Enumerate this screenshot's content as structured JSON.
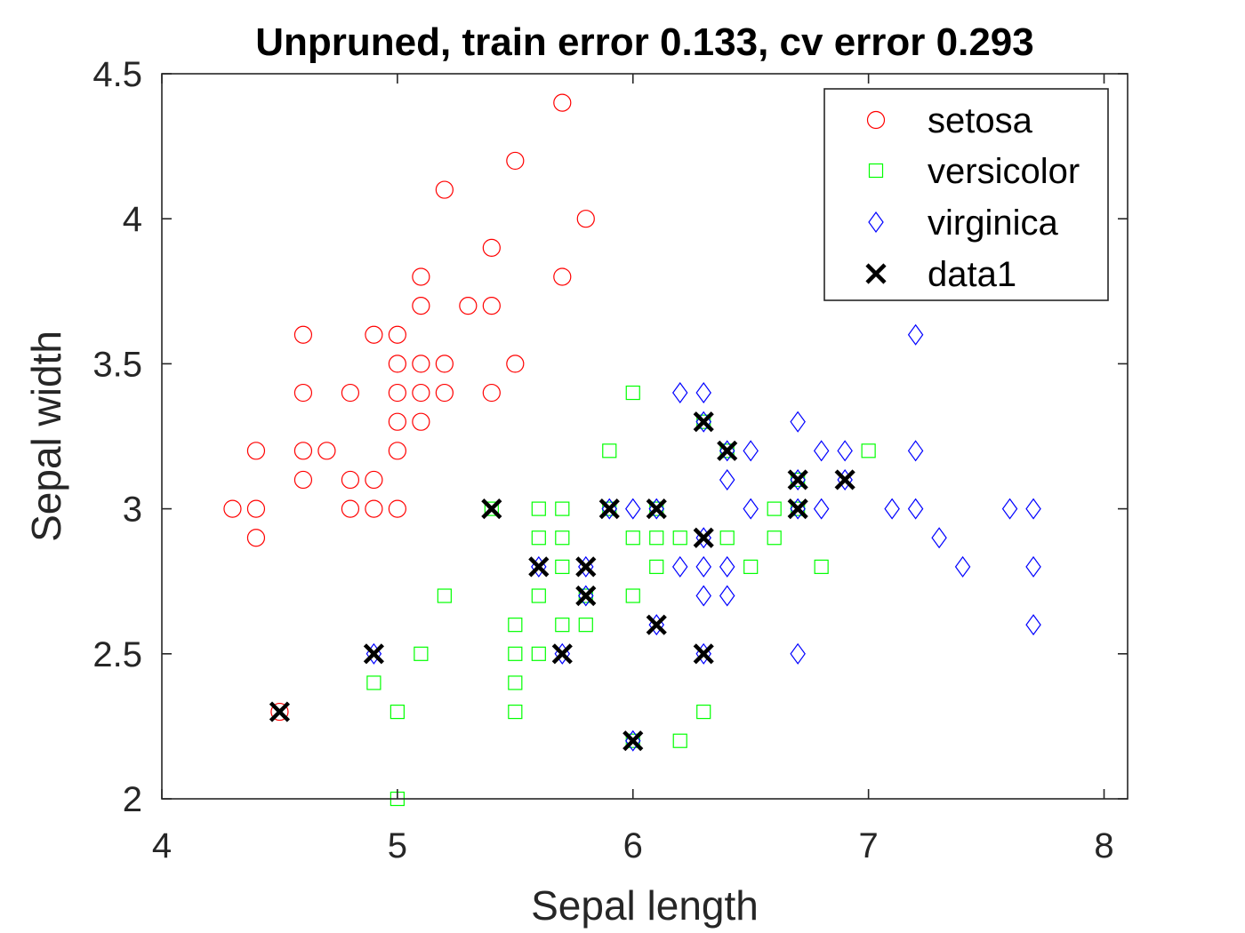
{
  "chart_data": {
    "type": "scatter",
    "title": "Unpruned, train error 0.133, cv error 0.293",
    "xlabel": "Sepal length",
    "ylabel": "Sepal width",
    "xlim": [
      4,
      8.1
    ],
    "ylim": [
      2,
      4.5
    ],
    "xticks": [
      "4",
      "5",
      "6",
      "7",
      "8"
    ],
    "xtick_values": [
      4,
      5,
      6,
      7,
      8
    ],
    "yticks": [
      "2",
      "2.5",
      "3",
      "3.5",
      "4",
      "4.5"
    ],
    "ytick_values": [
      2,
      2.5,
      3,
      3.5,
      4,
      4.5
    ],
    "grid": false,
    "legend_position": "top-right",
    "series": [
      {
        "name": "setosa",
        "marker": "circle",
        "color": "#ff0000",
        "points": [
          [
            5.7,
            4.4
          ],
          [
            5.5,
            4.2
          ],
          [
            5.2,
            4.1
          ],
          [
            5.8,
            4.0
          ],
          [
            5.4,
            3.9
          ],
          [
            5.1,
            3.8
          ],
          [
            5.7,
            3.8
          ],
          [
            5.1,
            3.7
          ],
          [
            5.3,
            3.7
          ],
          [
            5.4,
            3.7
          ],
          [
            4.6,
            3.6
          ],
          [
            4.9,
            3.6
          ],
          [
            5.0,
            3.6
          ],
          [
            5.0,
            3.5
          ],
          [
            5.1,
            3.5
          ],
          [
            5.2,
            3.5
          ],
          [
            5.5,
            3.5
          ],
          [
            4.6,
            3.4
          ],
          [
            4.8,
            3.4
          ],
          [
            5.0,
            3.4
          ],
          [
            5.1,
            3.4
          ],
          [
            5.2,
            3.4
          ],
          [
            5.4,
            3.4
          ],
          [
            5.0,
            3.3
          ],
          [
            5.1,
            3.3
          ],
          [
            4.4,
            3.2
          ],
          [
            4.6,
            3.2
          ],
          [
            4.7,
            3.2
          ],
          [
            5.0,
            3.2
          ],
          [
            4.6,
            3.1
          ],
          [
            4.8,
            3.1
          ],
          [
            4.9,
            3.1
          ],
          [
            4.3,
            3.0
          ],
          [
            4.4,
            3.0
          ],
          [
            4.8,
            3.0
          ],
          [
            4.9,
            3.0
          ],
          [
            5.0,
            3.0
          ],
          [
            4.4,
            2.9
          ],
          [
            4.5,
            2.3
          ]
        ]
      },
      {
        "name": "versicolor",
        "marker": "square",
        "color": "#00ff00",
        "points": [
          [
            6.0,
            3.4
          ],
          [
            5.9,
            3.2
          ],
          [
            7.0,
            3.2
          ],
          [
            6.4,
            3.2
          ],
          [
            6.3,
            3.3
          ],
          [
            6.7,
            3.1
          ],
          [
            5.4,
            3.0
          ],
          [
            5.6,
            3.0
          ],
          [
            5.7,
            3.0
          ],
          [
            5.9,
            3.0
          ],
          [
            6.1,
            3.0
          ],
          [
            6.6,
            3.0
          ],
          [
            6.7,
            3.0
          ],
          [
            5.6,
            2.9
          ],
          [
            5.7,
            2.9
          ],
          [
            6.0,
            2.9
          ],
          [
            6.1,
            2.9
          ],
          [
            6.2,
            2.9
          ],
          [
            6.4,
            2.9
          ],
          [
            6.6,
            2.9
          ],
          [
            5.7,
            2.8
          ],
          [
            6.1,
            2.8
          ],
          [
            6.5,
            2.8
          ],
          [
            6.8,
            2.8
          ],
          [
            5.2,
            2.7
          ],
          [
            5.6,
            2.7
          ],
          [
            5.8,
            2.7
          ],
          [
            6.0,
            2.7
          ],
          [
            5.5,
            2.6
          ],
          [
            5.7,
            2.6
          ],
          [
            5.8,
            2.6
          ],
          [
            5.1,
            2.5
          ],
          [
            5.5,
            2.5
          ],
          [
            5.6,
            2.5
          ],
          [
            4.9,
            2.4
          ],
          [
            5.5,
            2.4
          ],
          [
            5.0,
            2.3
          ],
          [
            5.5,
            2.3
          ],
          [
            6.3,
            2.3
          ],
          [
            6.2,
            2.2
          ],
          [
            6.0,
            2.2
          ],
          [
            5.0,
            2.0
          ]
        ]
      },
      {
        "name": "virginica",
        "marker": "diamond",
        "color": "#0000ff",
        "points": [
          [
            7.2,
            3.6
          ],
          [
            6.2,
            3.4
          ],
          [
            6.3,
            3.4
          ],
          [
            6.7,
            3.3
          ],
          [
            6.3,
            3.3
          ],
          [
            6.4,
            3.2
          ],
          [
            6.5,
            3.2
          ],
          [
            6.8,
            3.2
          ],
          [
            6.9,
            3.2
          ],
          [
            7.2,
            3.2
          ],
          [
            6.4,
            3.1
          ],
          [
            6.7,
            3.1
          ],
          [
            6.9,
            3.1
          ],
          [
            5.9,
            3.0
          ],
          [
            6.0,
            3.0
          ],
          [
            6.1,
            3.0
          ],
          [
            6.5,
            3.0
          ],
          [
            6.8,
            3.0
          ],
          [
            7.1,
            3.0
          ],
          [
            7.2,
            3.0
          ],
          [
            7.6,
            3.0
          ],
          [
            7.7,
            3.0
          ],
          [
            6.7,
            3.0
          ],
          [
            6.3,
            2.9
          ],
          [
            7.3,
            2.9
          ],
          [
            5.6,
            2.8
          ],
          [
            6.2,
            2.8
          ],
          [
            6.3,
            2.8
          ],
          [
            6.4,
            2.8
          ],
          [
            7.4,
            2.8
          ],
          [
            7.7,
            2.8
          ],
          [
            5.8,
            2.8
          ],
          [
            5.8,
            2.7
          ],
          [
            6.3,
            2.7
          ],
          [
            6.4,
            2.7
          ],
          [
            6.1,
            2.6
          ],
          [
            7.7,
            2.6
          ],
          [
            4.9,
            2.5
          ],
          [
            5.7,
            2.5
          ],
          [
            6.3,
            2.5
          ],
          [
            6.7,
            2.5
          ],
          [
            6.0,
            2.2
          ]
        ]
      },
      {
        "name": "data1",
        "marker": "x",
        "color": "#000000",
        "points": [
          [
            6.3,
            3.3
          ],
          [
            6.4,
            3.2
          ],
          [
            6.7,
            3.1
          ],
          [
            6.9,
            3.1
          ],
          [
            5.4,
            3.0
          ],
          [
            5.9,
            3.0
          ],
          [
            6.1,
            3.0
          ],
          [
            6.7,
            3.0
          ],
          [
            6.3,
            2.9
          ],
          [
            5.6,
            2.8
          ],
          [
            5.8,
            2.8
          ],
          [
            5.8,
            2.7
          ],
          [
            6.1,
            2.6
          ],
          [
            4.9,
            2.5
          ],
          [
            5.7,
            2.5
          ],
          [
            6.3,
            2.5
          ],
          [
            4.5,
            2.3
          ],
          [
            6.0,
            2.2
          ]
        ]
      }
    ]
  }
}
